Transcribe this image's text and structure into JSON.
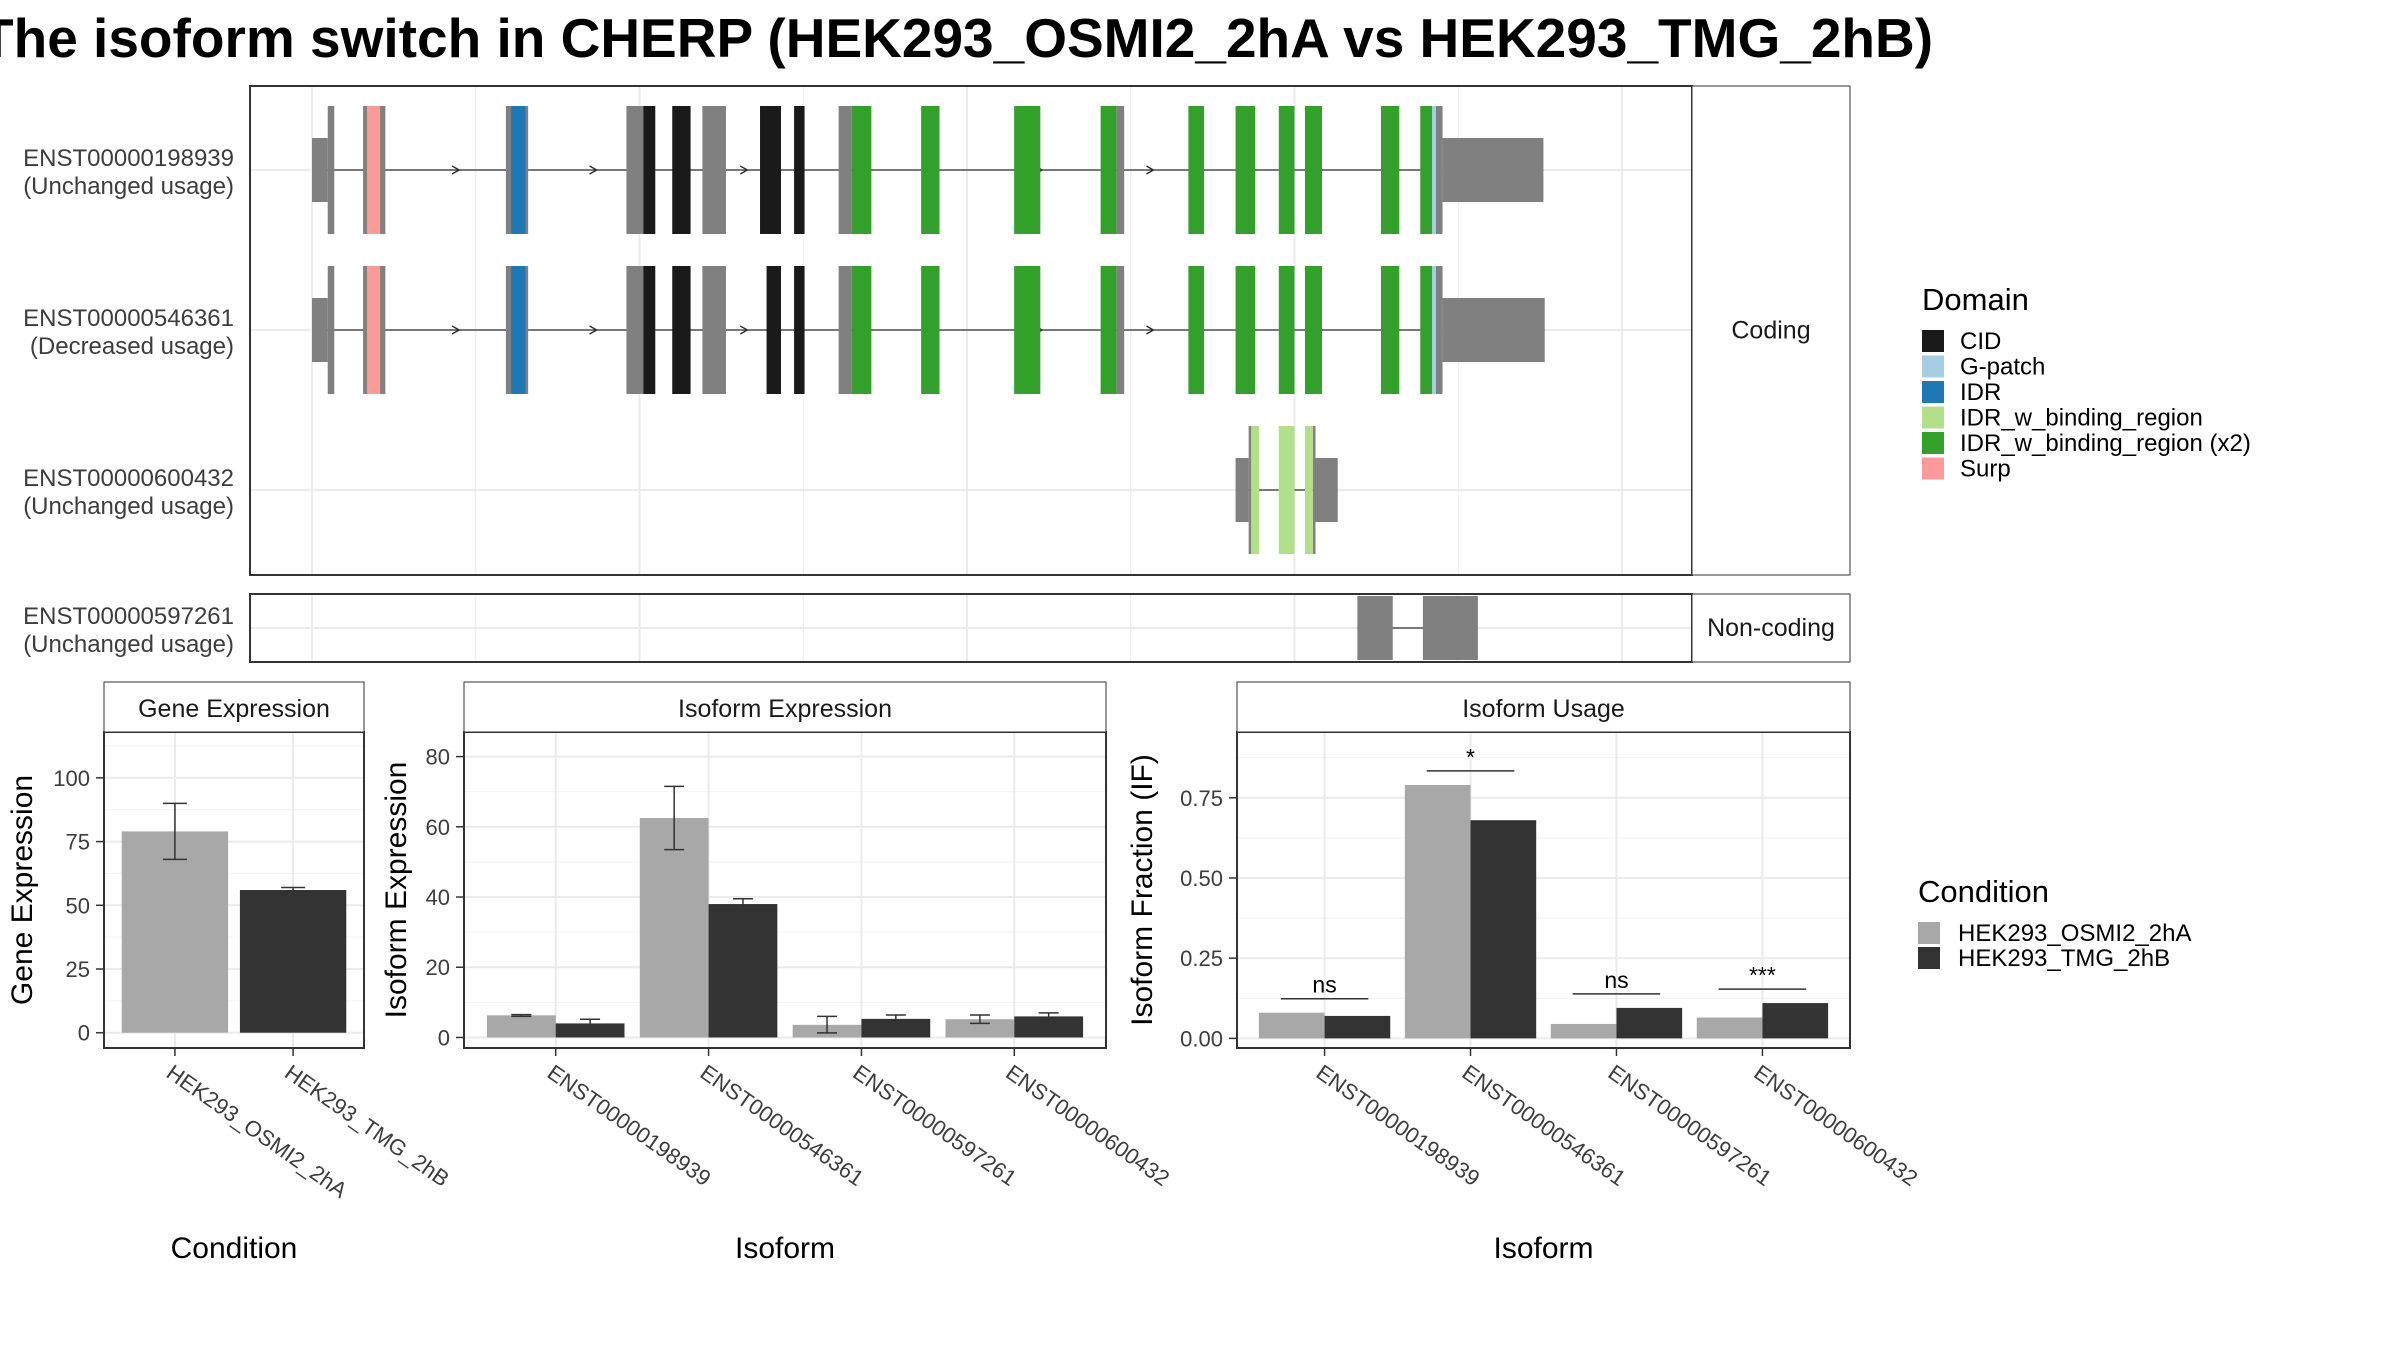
{
  "title": "The isoform switch in CHERP (HEK293_OSMI2_2hA vs HEK293_TMG_2hB)",
  "colors": {
    "exon": "#808080",
    "cond_a": "#a8a8a8",
    "cond_b": "#333333"
  },
  "structure": {
    "x_domain": [
      0,
      1000
    ],
    "coding_label": "Coding",
    "noncoding_label": "Non-coding",
    "coding_isoforms": [
      {
        "id": "ENST00000198939",
        "usage": "(Unchanged usage)",
        "utr": [
          [
            0,
            12
          ],
          [
            863,
            940
          ]
        ],
        "exons": [
          [
            12,
            17
          ],
          [
            39,
            56
          ],
          [
            148,
            165
          ],
          [
            240,
            262
          ],
          [
            298,
            316
          ],
          [
            352,
            356
          ],
          [
            402,
            412
          ]
        ],
        "domains": [
          {
            "d": "Surp",
            "s": [
              42,
              52
            ]
          },
          {
            "d": "IDR",
            "s": [
              152,
              163
            ]
          },
          {
            "d": "CID",
            "s": [
              253,
              262
            ]
          },
          {
            "d": "CID",
            "s": [
              275,
              289
            ]
          },
          {
            "d": "CID",
            "s": [
              342,
              358
            ]
          },
          {
            "d": "CID",
            "s": [
              368,
              376
            ]
          },
          {
            "d": "IDR_w_binding_region (x2)",
            "s": [
              412,
              427
            ]
          },
          {
            "d": "IDR_w_binding_region (x2)",
            "s": [
              465,
              479
            ]
          },
          {
            "d": "IDR_w_binding_region (x2)",
            "s": [
              536,
              556
            ]
          },
          {
            "d": "IDR_w_binding_region (x2)",
            "s": [
              602,
              614
            ]
          },
          {
            "d": "IDR_w_binding_region (x2)",
            "s": [
              669,
              681
            ]
          },
          {
            "d": "IDR_w_binding_region (x2)",
            "s": [
              705,
              720
            ]
          },
          {
            "d": "IDR_w_binding_region (x2)",
            "s": [
              738,
              750
            ]
          },
          {
            "d": "IDR_w_binding_region (x2)",
            "s": [
              758,
              771
            ]
          },
          {
            "d": "IDR_w_binding_region (x2)",
            "s": [
              816,
              830
            ]
          },
          {
            "d": "IDR_w_binding_region (x2)",
            "s": [
              846,
              855
            ]
          },
          {
            "d": "G-patch",
            "s": [
              855,
              858
            ]
          }
        ],
        "grey_after": [
          [
            614,
            620
          ],
          [
            855,
            863
          ]
        ]
      },
      {
        "id": "ENST00000546361",
        "usage": "(Decreased usage)",
        "utr": [
          [
            0,
            12
          ],
          [
            863,
            941
          ]
        ],
        "exons": [
          [
            12,
            17
          ],
          [
            39,
            56
          ],
          [
            148,
            165
          ],
          [
            240,
            262
          ],
          [
            298,
            316
          ],
          [
            352,
            356
          ],
          [
            402,
            412
          ]
        ],
        "domains": [
          {
            "d": "Surp",
            "s": [
              42,
              52
            ]
          },
          {
            "d": "IDR",
            "s": [
              152,
              163
            ]
          },
          {
            "d": "CID",
            "s": [
              253,
              262
            ]
          },
          {
            "d": "CID",
            "s": [
              275,
              289
            ]
          },
          {
            "d": "CID",
            "s": [
              347,
              358
            ]
          },
          {
            "d": "CID",
            "s": [
              368,
              376
            ]
          },
          {
            "d": "IDR_w_binding_region (x2)",
            "s": [
              412,
              427
            ]
          },
          {
            "d": "IDR_w_binding_region (x2)",
            "s": [
              465,
              479
            ]
          },
          {
            "d": "IDR_w_binding_region (x2)",
            "s": [
              536,
              556
            ]
          },
          {
            "d": "IDR_w_binding_region (x2)",
            "s": [
              602,
              614
            ]
          },
          {
            "d": "IDR_w_binding_region (x2)",
            "s": [
              669,
              681
            ]
          },
          {
            "d": "IDR_w_binding_region (x2)",
            "s": [
              705,
              720
            ]
          },
          {
            "d": "IDR_w_binding_region (x2)",
            "s": [
              738,
              750
            ]
          },
          {
            "d": "IDR_w_binding_region (x2)",
            "s": [
              758,
              771
            ]
          },
          {
            "d": "IDR_w_binding_region (x2)",
            "s": [
              816,
              830
            ]
          },
          {
            "d": "IDR_w_binding_region (x2)",
            "s": [
              846,
              855
            ]
          },
          {
            "d": "G-patch",
            "s": [
              855,
              858
            ]
          }
        ],
        "grey_after": [
          [
            614,
            620
          ],
          [
            855,
            863
          ]
        ]
      },
      {
        "id": "ENST00000600432",
        "usage": "(Unchanged usage)",
        "utr": [
          [
            705,
            715
          ],
          [
            765,
            783
          ]
        ],
        "exons": [
          [
            715,
            717
          ],
          [
            764,
            766
          ]
        ],
        "domains": [
          {
            "d": "IDR_w_binding_region",
            "s": [
              717,
              723
            ]
          },
          {
            "d": "IDR_w_binding_region",
            "s": [
              738,
              750
            ]
          },
          {
            "d": "IDR_w_binding_region",
            "s": [
              758,
              764
            ]
          }
        ],
        "grey_after": []
      }
    ],
    "noncoding_isoforms": [
      {
        "id": "ENST00000597261",
        "usage": "(Unchanged usage)",
        "exons": [
          [
            798,
            825
          ],
          [
            848,
            890
          ]
        ]
      }
    ]
  },
  "domain_legend": {
    "title": "Domain",
    "items": [
      {
        "name": "CID",
        "color": "#1a1a1a"
      },
      {
        "name": "G-patch",
        "color": "#a6cee3"
      },
      {
        "name": "IDR",
        "color": "#1f78b4"
      },
      {
        "name": "IDR_w_binding_region",
        "color": "#b2df8a"
      },
      {
        "name": "IDR_w_binding_region (x2)",
        "color": "#33a02c"
      },
      {
        "name": "Surp",
        "color": "#fb9a99"
      }
    ]
  },
  "condition_legend": {
    "title": "Condition",
    "items": [
      "HEK293_OSMI2_2hA",
      "HEK293_TMG_2hB"
    ]
  },
  "chart_data": [
    {
      "type": "bar",
      "title": "Gene Expression",
      "xlabel": "Condition",
      "ylabel": "Gene Expression",
      "categories": [
        "HEK293_OSMI2_2hA",
        "HEK293_TMG_2hB"
      ],
      "values": [
        79,
        56
      ],
      "error_low": [
        68,
        55
      ],
      "error_high": [
        90,
        57
      ],
      "ylim": [
        -6,
        118
      ],
      "yticks": [
        0,
        25,
        50,
        75,
        100
      ]
    },
    {
      "type": "bar",
      "title": "Isoform Expression",
      "xlabel": "Isoform",
      "ylabel": "Isoform Expression",
      "categories": [
        "ENST00000198939",
        "ENST00000546361",
        "ENST00000597261",
        "ENST00000600432"
      ],
      "series": [
        {
          "name": "HEK293_OSMI2_2hA",
          "values": [
            6.3,
            62.5,
            3.6,
            5.2
          ],
          "error_low": [
            6.0,
            53.5,
            1.3,
            4.0
          ],
          "error_high": [
            6.5,
            71.5,
            6.0,
            6.4
          ]
        },
        {
          "name": "HEK293_TMG_2hB",
          "values": [
            4.0,
            38.0,
            5.3,
            6.0
          ],
          "error_low": [
            2.8,
            36.5,
            4.2,
            5.0
          ],
          "error_high": [
            5.2,
            39.5,
            6.4,
            7.0
          ]
        }
      ],
      "ylim": [
        -3,
        87
      ],
      "yticks": [
        0,
        20,
        40,
        60,
        80
      ]
    },
    {
      "type": "bar",
      "title": "Isoform Usage",
      "xlabel": "Isoform",
      "ylabel": "Isoform Fraction (IF)",
      "categories": [
        "ENST00000198939",
        "ENST00000546361",
        "ENST00000597261",
        "ENST00000600432"
      ],
      "series": [
        {
          "name": "HEK293_OSMI2_2hA",
          "values": [
            0.08,
            0.79,
            0.045,
            0.065
          ]
        },
        {
          "name": "HEK293_TMG_2hB",
          "values": [
            0.07,
            0.68,
            0.095,
            0.11
          ]
        }
      ],
      "significance": [
        "ns",
        "*",
        "ns",
        "***"
      ],
      "ylim": [
        -0.03,
        0.955
      ],
      "yticks": [
        0.0,
        0.25,
        0.5,
        0.75
      ],
      "ytick_labels": [
        "0.00",
        "0.25",
        "0.50",
        "0.75"
      ]
    }
  ]
}
